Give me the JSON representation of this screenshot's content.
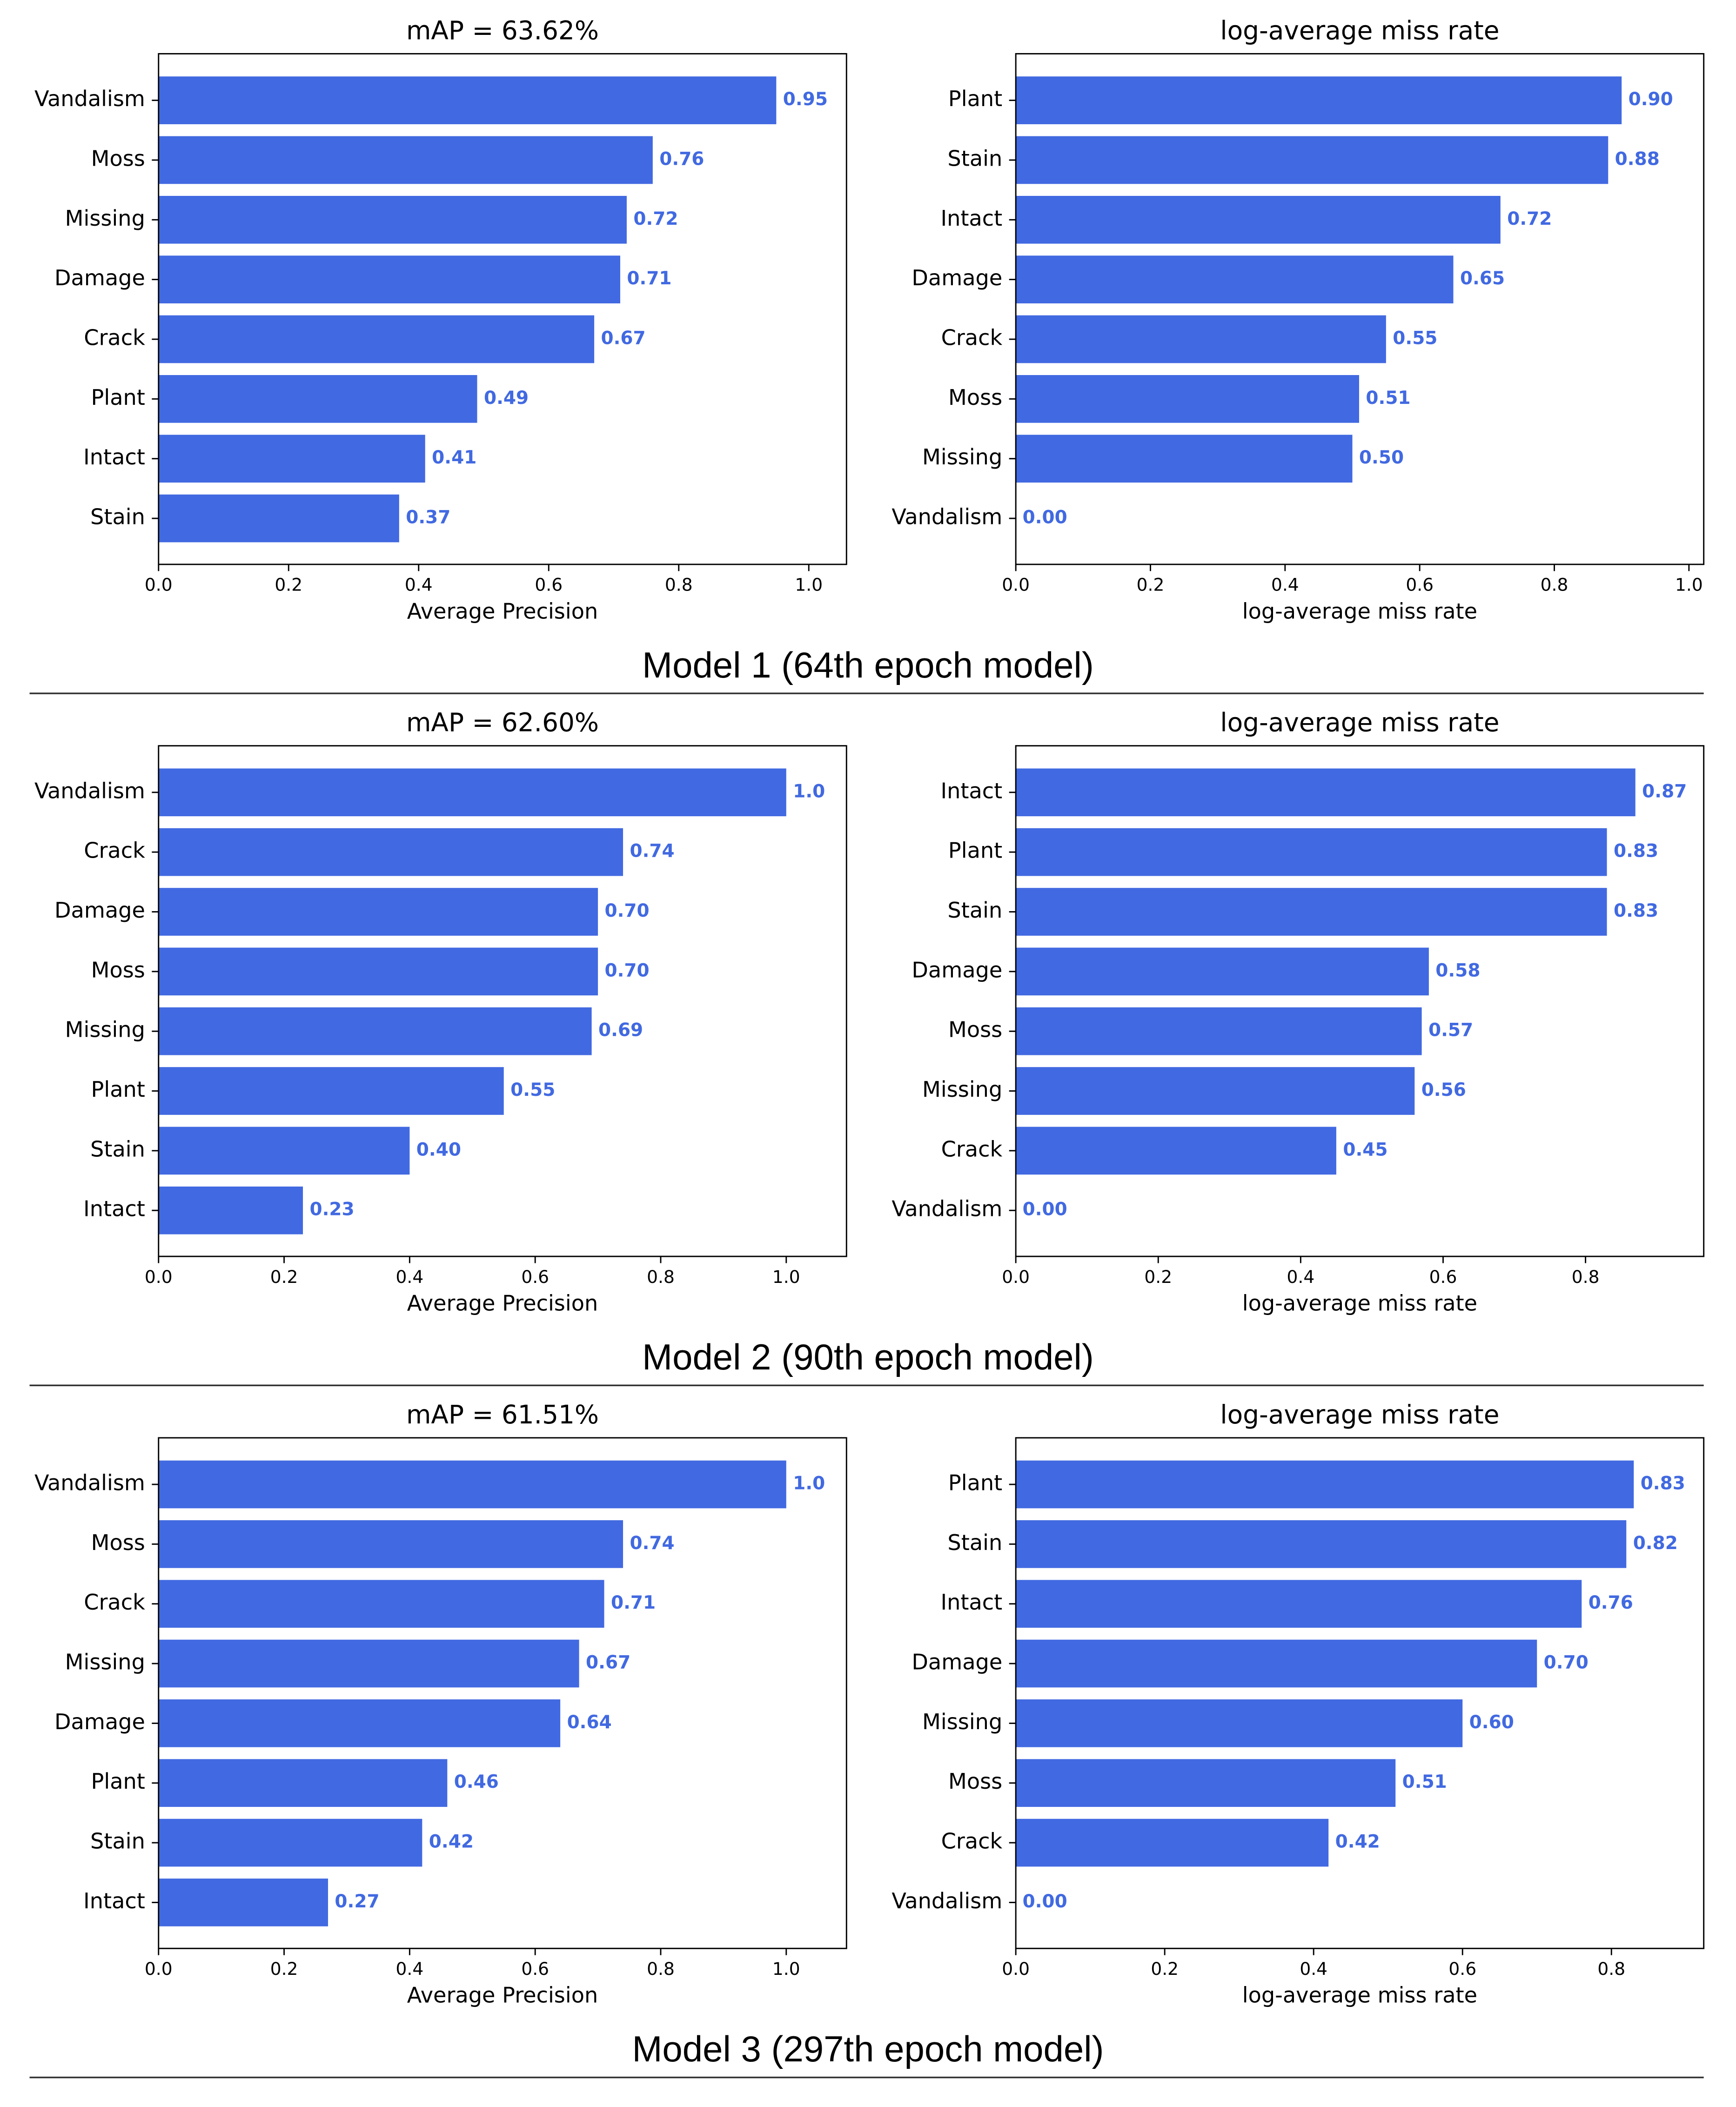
{
  "chart_data": [
    {
      "type": "barh",
      "title": "mAP = 63.62%",
      "xlabel": "Average Precision",
      "color": "#4169e1",
      "categories": [
        "Vandalism",
        "Moss",
        "Missing",
        "Damage",
        "Crack",
        "Plant",
        "Intact",
        "Stain"
      ],
      "values": [
        0.95,
        0.76,
        0.72,
        0.71,
        0.67,
        0.49,
        0.41,
        0.37
      ],
      "value_labels": [
        "0.95",
        "0.76",
        "0.72",
        "0.71",
        "0.67",
        "0.49",
        "0.41",
        "0.37"
      ],
      "xlim": [
        0,
        1.058
      ],
      "xticks": [
        {
          "value": 0,
          "label": "0.0"
        },
        0.2,
        0.4,
        0.6,
        0.8,
        {
          "value": 1,
          "label": "1.0"
        }
      ]
    },
    {
      "type": "barh",
      "title": "log-average miss rate",
      "xlabel": "log-average miss rate",
      "color": "#4169e1",
      "categories": [
        "Plant",
        "Stain",
        "Intact",
        "Damage",
        "Crack",
        "Moss",
        "Missing",
        "Vandalism"
      ],
      "values": [
        0.9,
        0.88,
        0.72,
        0.65,
        0.55,
        0.51,
        0.5,
        0
      ],
      "value_labels": [
        "0.90",
        "0.88",
        "0.72",
        "0.65",
        "0.55",
        "0.51",
        "0.50",
        "0.00"
      ],
      "xlim": [
        0,
        1.022
      ],
      "xticks": [
        {
          "value": 0,
          "label": "0.0"
        },
        0.2,
        0.4,
        0.6,
        0.8,
        {
          "value": 1,
          "label": "1.0"
        }
      ]
    },
    {
      "type": "barh",
      "title": "mAP = 62.60%",
      "xlabel": "Average Precision",
      "color": "#4169e1",
      "categories": [
        "Vandalism",
        "Crack",
        "Damage",
        "Moss",
        "Missing",
        "Plant",
        "Stain",
        "Intact"
      ],
      "values": [
        1,
        0.74,
        0.7,
        0.7,
        0.69,
        0.55,
        0.4,
        0.23
      ],
      "value_labels": [
        "1.0",
        "0.74",
        "0.70",
        "0.70",
        "0.69",
        "0.55",
        "0.40",
        "0.23"
      ],
      "xlim": [
        0,
        1.096
      ],
      "xticks": [
        {
          "value": 0,
          "label": "0.0"
        },
        0.2,
        0.4,
        0.6,
        0.8,
        {
          "value": 1,
          "label": "1.0"
        }
      ]
    },
    {
      "type": "barh",
      "title": "log-average miss rate",
      "xlabel": "log-average miss rate",
      "color": "#4169e1",
      "categories": [
        "Intact",
        "Plant",
        "Stain",
        "Damage",
        "Moss",
        "Missing",
        "Crack",
        "Vandalism"
      ],
      "values": [
        0.87,
        0.83,
        0.83,
        0.58,
        0.57,
        0.56,
        0.45,
        0
      ],
      "value_labels": [
        "0.87",
        "0.83",
        "0.83",
        "0.58",
        "0.57",
        "0.56",
        "0.45",
        "0.00"
      ],
      "xlim": [
        0,
        0.966
      ],
      "xticks": [
        {
          "value": 0,
          "label": "0.0"
        },
        0.2,
        0.4,
        0.6,
        0.8
      ]
    },
    {
      "type": "barh",
      "title": "mAP = 61.51%",
      "xlabel": "Average Precision",
      "color": "#4169e1",
      "categories": [
        "Vandalism",
        "Moss",
        "Crack",
        "Missing",
        "Damage",
        "Plant",
        "Stain",
        "Intact"
      ],
      "values": [
        1,
        0.74,
        0.71,
        0.67,
        0.64,
        0.46,
        0.42,
        0.27
      ],
      "value_labels": [
        "1.0",
        "0.74",
        "0.71",
        "0.67",
        "0.64",
        "0.46",
        "0.42",
        "0.27"
      ],
      "xlim": [
        0,
        1.096
      ],
      "xticks": [
        {
          "value": 0,
          "label": "0.0"
        },
        0.2,
        0.4,
        0.6,
        0.8,
        {
          "value": 1,
          "label": "1.0"
        }
      ]
    },
    {
      "type": "barh",
      "title": "log-average miss rate",
      "xlabel": "log-average miss rate",
      "color": "#4169e1",
      "categories": [
        "Plant",
        "Stain",
        "Intact",
        "Damage",
        "Missing",
        "Moss",
        "Crack",
        "Vandalism"
      ],
      "values": [
        0.83,
        0.82,
        0.76,
        0.7,
        0.6,
        0.51,
        0.42,
        0
      ],
      "value_labels": [
        "0.83",
        "0.82",
        "0.76",
        "0.70",
        "0.60",
        "0.51",
        "0.42",
        "0.00"
      ],
      "xlim": [
        0,
        0.924
      ],
      "xticks": [
        {
          "value": 0,
          "label": "0.0"
        },
        0.2,
        0.4,
        0.6,
        0.8
      ]
    }
  ],
  "captions": [
    "Model 1 (64th epoch model)",
    "Model 2 (90th epoch model)",
    "Model 3 (297th epoch model)"
  ]
}
